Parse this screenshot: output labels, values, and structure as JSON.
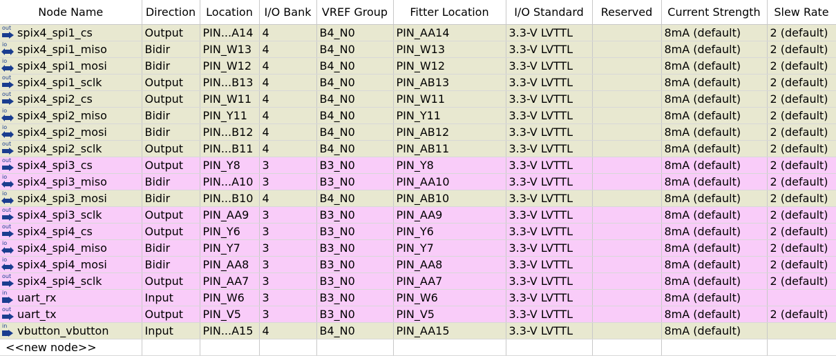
{
  "columns": [
    "Node Name",
    "Direction",
    "Location",
    "I/O Bank",
    "VREF Group",
    "Fitter Location",
    "I/O Standard",
    "Reserved",
    "Current Strength",
    "Slew Rate"
  ],
  "colors": {
    "bank_b4_row": "#e8e8d0",
    "bank_b3_row": "#f9ccf9",
    "icon_blue": "#1a3d8f"
  },
  "rows": [
    {
      "icon": "out",
      "name": "spix4_spi1_cs",
      "direction": "Output",
      "location": "PIN...A14",
      "bank": "4",
      "vref": "B4_N0",
      "fitter": "PIN_AA14",
      "standard": "3.3-V LVTTL",
      "reserved": "",
      "current": "8mA (default)",
      "slew": "2 (default)"
    },
    {
      "icon": "io",
      "name": "spix4_spi1_miso",
      "direction": "Bidir",
      "location": "PIN_W13",
      "bank": "4",
      "vref": "B4_N0",
      "fitter": "PIN_W13",
      "standard": "3.3-V LVTTL",
      "reserved": "",
      "current": "8mA (default)",
      "slew": "2 (default)"
    },
    {
      "icon": "io",
      "name": "spix4_spi1_mosi",
      "direction": "Bidir",
      "location": "PIN_W12",
      "bank": "4",
      "vref": "B4_N0",
      "fitter": "PIN_W12",
      "standard": "3.3-V LVTTL",
      "reserved": "",
      "current": "8mA (default)",
      "slew": "2 (default)"
    },
    {
      "icon": "out",
      "name": "spix4_spi1_sclk",
      "direction": "Output",
      "location": "PIN...B13",
      "bank": "4",
      "vref": "B4_N0",
      "fitter": "PIN_AB13",
      "standard": "3.3-V LVTTL",
      "reserved": "",
      "current": "8mA (default)",
      "slew": "2 (default)"
    },
    {
      "icon": "out",
      "name": "spix4_spi2_cs",
      "direction": "Output",
      "location": "PIN_W11",
      "bank": "4",
      "vref": "B4_N0",
      "fitter": "PIN_W11",
      "standard": "3.3-V LVTTL",
      "reserved": "",
      "current": "8mA (default)",
      "slew": "2 (default)"
    },
    {
      "icon": "io",
      "name": "spix4_spi2_miso",
      "direction": "Bidir",
      "location": "PIN_Y11",
      "bank": "4",
      "vref": "B4_N0",
      "fitter": "PIN_Y11",
      "standard": "3.3-V LVTTL",
      "reserved": "",
      "current": "8mA (default)",
      "slew": "2 (default)"
    },
    {
      "icon": "io",
      "name": "spix4_spi2_mosi",
      "direction": "Bidir",
      "location": "PIN...B12",
      "bank": "4",
      "vref": "B4_N0",
      "fitter": "PIN_AB12",
      "standard": "3.3-V LVTTL",
      "reserved": "",
      "current": "8mA (default)",
      "slew": "2 (default)"
    },
    {
      "icon": "out",
      "name": "spix4_spi2_sclk",
      "direction": "Output",
      "location": "PIN...B11",
      "bank": "4",
      "vref": "B4_N0",
      "fitter": "PIN_AB11",
      "standard": "3.3-V LVTTL",
      "reserved": "",
      "current": "8mA (default)",
      "slew": "2 (default)"
    },
    {
      "icon": "out",
      "name": "spix4_spi3_cs",
      "direction": "Output",
      "location": "PIN_Y8",
      "bank": "3",
      "vref": "B3_N0",
      "fitter": "PIN_Y8",
      "standard": "3.3-V LVTTL",
      "reserved": "",
      "current": "8mA (default)",
      "slew": "2 (default)"
    },
    {
      "icon": "io",
      "name": "spix4_spi3_miso",
      "direction": "Bidir",
      "location": "PIN...A10",
      "bank": "3",
      "vref": "B3_N0",
      "fitter": "PIN_AA10",
      "standard": "3.3-V LVTTL",
      "reserved": "",
      "current": "8mA (default)",
      "slew": "2 (default)"
    },
    {
      "icon": "io",
      "name": "spix4_spi3_mosi",
      "direction": "Bidir",
      "location": "PIN...B10",
      "bank": "4",
      "vref": "B4_N0",
      "fitter": "PIN_AB10",
      "standard": "3.3-V LVTTL",
      "reserved": "",
      "current": "8mA (default)",
      "slew": "2 (default)"
    },
    {
      "icon": "out",
      "name": "spix4_spi3_sclk",
      "direction": "Output",
      "location": "PIN_AA9",
      "bank": "3",
      "vref": "B3_N0",
      "fitter": "PIN_AA9",
      "standard": "3.3-V LVTTL",
      "reserved": "",
      "current": "8mA (default)",
      "slew": "2 (default)"
    },
    {
      "icon": "out",
      "name": "spix4_spi4_cs",
      "direction": "Output",
      "location": "PIN_Y6",
      "bank": "3",
      "vref": "B3_N0",
      "fitter": "PIN_Y6",
      "standard": "3.3-V LVTTL",
      "reserved": "",
      "current": "8mA (default)",
      "slew": "2 (default)"
    },
    {
      "icon": "io",
      "name": "spix4_spi4_miso",
      "direction": "Bidir",
      "location": "PIN_Y7",
      "bank": "3",
      "vref": "B3_N0",
      "fitter": "PIN_Y7",
      "standard": "3.3-V LVTTL",
      "reserved": "",
      "current": "8mA (default)",
      "slew": "2 (default)"
    },
    {
      "icon": "io",
      "name": "spix4_spi4_mosi",
      "direction": "Bidir",
      "location": "PIN_AA8",
      "bank": "3",
      "vref": "B3_N0",
      "fitter": "PIN_AA8",
      "standard": "3.3-V LVTTL",
      "reserved": "",
      "current": "8mA (default)",
      "slew": "2 (default)"
    },
    {
      "icon": "out",
      "name": "spix4_spi4_sclk",
      "direction": "Output",
      "location": "PIN_AA7",
      "bank": "3",
      "vref": "B3_N0",
      "fitter": "PIN_AA7",
      "standard": "3.3-V LVTTL",
      "reserved": "",
      "current": "8mA (default)",
      "slew": "2 (default)"
    },
    {
      "icon": "in",
      "name": "uart_rx",
      "direction": "Input",
      "location": "PIN_W6",
      "bank": "3",
      "vref": "B3_N0",
      "fitter": "PIN_W6",
      "standard": "3.3-V LVTTL",
      "reserved": "",
      "current": "8mA (default)",
      "slew": ""
    },
    {
      "icon": "out",
      "name": "uart_tx",
      "direction": "Output",
      "location": "PIN_V5",
      "bank": "3",
      "vref": "B3_N0",
      "fitter": "PIN_V5",
      "standard": "3.3-V LVTTL",
      "reserved": "",
      "current": "8mA (default)",
      "slew": "2 (default)"
    },
    {
      "icon": "in",
      "name": "vbutton_vbutton",
      "direction": "Input",
      "location": "PIN...A15",
      "bank": "4",
      "vref": "B4_N0",
      "fitter": "PIN_AA15",
      "standard": "3.3-V LVTTL",
      "reserved": "",
      "current": "8mA (default)",
      "slew": ""
    }
  ],
  "new_node_label": "<<new node>>"
}
